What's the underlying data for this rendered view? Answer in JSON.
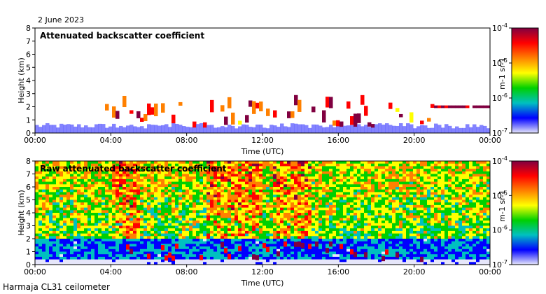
{
  "date_label": "2 June 2023",
  "footer_label": "Harmaja CL31 ceilometer",
  "colorscale": [
    "#e6e6fa",
    "#0000ff",
    "#00c0c0",
    "#00d000",
    "#ffff00",
    "#ff8000",
    "#ff0000",
    "#800040"
  ],
  "chart_data": [
    {
      "type": "heatmap",
      "title": "Attenuated backscatter coefficient",
      "xlabel": "Time (UTC)",
      "ylabel": "Height (km)",
      "xlim": [
        "00:00",
        "24:00"
      ],
      "ylim": [
        0,
        8
      ],
      "x_ticks": [
        "00:00",
        "04:00",
        "08:00",
        "12:00",
        "16:00",
        "20:00",
        "00:00"
      ],
      "y_ticks": [
        "0",
        "1",
        "2",
        "3",
        "4",
        "5",
        "6",
        "7",
        "8"
      ],
      "colorbar": {
        "scale": "log",
        "range": [
          1e-07,
          0.0001
        ],
        "ticks": [
          "10-7",
          "10-6",
          "10-5",
          "10-4"
        ],
        "label": "m-1 sr-1"
      }
    },
    {
      "type": "heatmap",
      "title": "Raw attenuated backscatter coefficient",
      "xlabel": "Time (UTC)",
      "ylabel": "Height (km)",
      "xlim": [
        "00:00",
        "24:00"
      ],
      "ylim": [
        0,
        8
      ],
      "x_ticks": [
        "00:00",
        "04:00",
        "08:00",
        "12:00",
        "16:00",
        "20:00",
        "00:00"
      ],
      "y_ticks": [
        "0",
        "1",
        "2",
        "3",
        "4",
        "5",
        "6",
        "7",
        "8"
      ],
      "colorbar": {
        "scale": "log",
        "range": [
          1e-07,
          0.0001
        ],
        "ticks": [
          "10-7",
          "10-6",
          "10-5",
          "10-4"
        ],
        "label": "m-1 sr-1"
      }
    }
  ]
}
